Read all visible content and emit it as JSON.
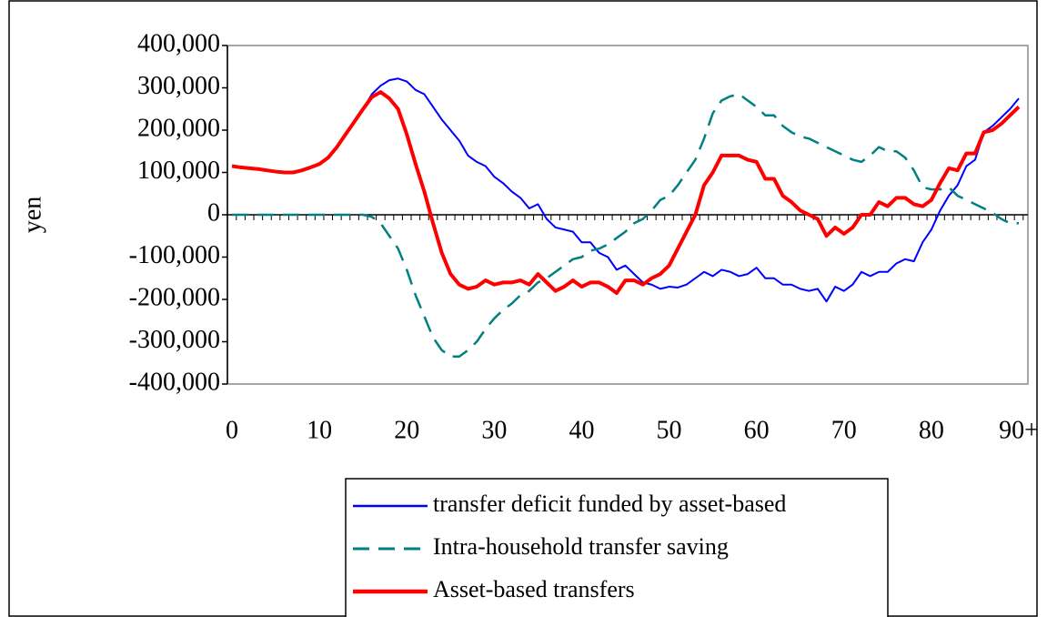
{
  "chart_data": {
    "type": "line",
    "ylabel": "yen",
    "categories": [
      "0",
      null,
      null,
      null,
      null,
      null,
      null,
      null,
      null,
      null,
      "10",
      null,
      null,
      null,
      null,
      null,
      null,
      null,
      null,
      null,
      "20",
      null,
      null,
      null,
      null,
      null,
      null,
      null,
      null,
      null,
      "30",
      null,
      null,
      null,
      null,
      null,
      null,
      null,
      null,
      null,
      "40",
      null,
      null,
      null,
      null,
      null,
      null,
      null,
      null,
      null,
      "50",
      null,
      null,
      null,
      null,
      null,
      null,
      null,
      null,
      null,
      "60",
      null,
      null,
      null,
      null,
      null,
      null,
      null,
      null,
      null,
      "70",
      null,
      null,
      null,
      null,
      null,
      null,
      null,
      null,
      null,
      "80",
      null,
      null,
      null,
      null,
      null,
      null,
      null,
      null,
      null,
      "90+"
    ],
    "series": [
      {
        "name": "transfer deficit funded by asset-based",
        "color": "#0000ff",
        "linewidth": 2,
        "dashed": false,
        "values": [
          115000,
          112000,
          110000,
          108000,
          105000,
          102000,
          100000,
          100000,
          105000,
          112000,
          120000,
          135000,
          160000,
          190000,
          220000,
          250000,
          285000,
          305000,
          318000,
          322000,
          315000,
          295000,
          285000,
          255000,
          225000,
          200000,
          175000,
          140000,
          125000,
          115000,
          90000,
          75000,
          55000,
          40000,
          15000,
          25000,
          -10000,
          -30000,
          -35000,
          -40000,
          -65000,
          -65000,
          -90000,
          -100000,
          -130000,
          -120000,
          -140000,
          -160000,
          -165000,
          -175000,
          -170000,
          -172000,
          -165000,
          -150000,
          -135000,
          -145000,
          -130000,
          -135000,
          -145000,
          -140000,
          -125000,
          -150000,
          -150000,
          -165000,
          -165000,
          -175000,
          -180000,
          -175000,
          -205000,
          -170000,
          -180000,
          -165000,
          -135000,
          -145000,
          -135000,
          -135000,
          -115000,
          -105000,
          -110000,
          -65000,
          -35000,
          10000,
          45000,
          70000,
          115000,
          130000,
          195000,
          210000,
          230000,
          250000,
          275000
        ]
      },
      {
        "name": "Intra-household transfer saving",
        "color": "#008080",
        "linewidth": 2.5,
        "dashed": true,
        "values": [
          0,
          0,
          0,
          0,
          0,
          0,
          0,
          0,
          0,
          0,
          0,
          0,
          0,
          0,
          0,
          0,
          -5000,
          -20000,
          -50000,
          -80000,
          -130000,
          -190000,
          -240000,
          -290000,
          -320000,
          -335000,
          -335000,
          -320000,
          -300000,
          -270000,
          -245000,
          -225000,
          -210000,
          -190000,
          -180000,
          -160000,
          -150000,
          -135000,
          -120000,
          -105000,
          -100000,
          -85000,
          -80000,
          -70000,
          -55000,
          -40000,
          -20000,
          -10000,
          10000,
          35000,
          45000,
          70000,
          100000,
          130000,
          180000,
          240000,
          270000,
          280000,
          285000,
          270000,
          255000,
          235000,
          235000,
          210000,
          195000,
          185000,
          180000,
          170000,
          160000,
          150000,
          140000,
          130000,
          125000,
          140000,
          160000,
          150000,
          150000,
          135000,
          105000,
          65000,
          60000,
          60000,
          65000,
          45000,
          35000,
          25000,
          15000,
          5000,
          -10000,
          -20000,
          -20000
        ]
      },
      {
        "name": "Asset-based transfers",
        "color": "#ff0000",
        "linewidth": 4,
        "dashed": false,
        "values": [
          115000,
          112000,
          110000,
          108000,
          105000,
          102000,
          100000,
          100000,
          105000,
          112000,
          120000,
          135000,
          160000,
          190000,
          220000,
          250000,
          278000,
          290000,
          275000,
          250000,
          190000,
          120000,
          55000,
          -20000,
          -90000,
          -140000,
          -165000,
          -175000,
          -170000,
          -155000,
          -165000,
          -160000,
          -160000,
          -155000,
          -165000,
          -140000,
          -160000,
          -180000,
          -170000,
          -155000,
          -170000,
          -160000,
          -160000,
          -170000,
          -185000,
          -155000,
          -155000,
          -165000,
          -150000,
          -140000,
          -120000,
          -80000,
          -40000,
          0,
          70000,
          100000,
          140000,
          140000,
          140000,
          130000,
          125000,
          85000,
          85000,
          45000,
          30000,
          10000,
          0,
          -10000,
          -50000,
          -30000,
          -45000,
          -30000,
          0,
          0,
          30000,
          20000,
          40000,
          40000,
          25000,
          20000,
          35000,
          75000,
          110000,
          105000,
          145000,
          145000,
          195000,
          200000,
          215000,
          235000,
          255000
        ]
      }
    ],
    "ylim": [
      -400000,
      400000
    ],
    "yticks": [
      {
        "value": -400000,
        "label": "-400,000"
      },
      {
        "value": -300000,
        "label": "-300,000"
      },
      {
        "value": -200000,
        "label": "-200,000"
      },
      {
        "value": -100000,
        "label": "-100,000"
      },
      0,
      {
        "value": 100000,
        "label": "100,000"
      },
      {
        "value": 200000,
        "label": "200,000"
      },
      {
        "value": 300000,
        "label": "300,000"
      },
      {
        "value": 400000,
        "label": "400,000"
      }
    ],
    "grid": false,
    "legend": "bottom"
  }
}
